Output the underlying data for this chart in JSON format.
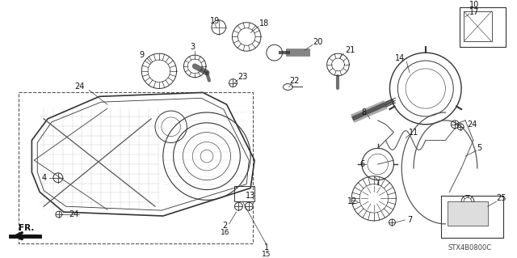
{
  "bg_color": "#ffffff",
  "diagram_code": "STX4B0800C",
  "line_color": "#333333",
  "light_gray": "#888888",
  "mid_gray": "#555555"
}
